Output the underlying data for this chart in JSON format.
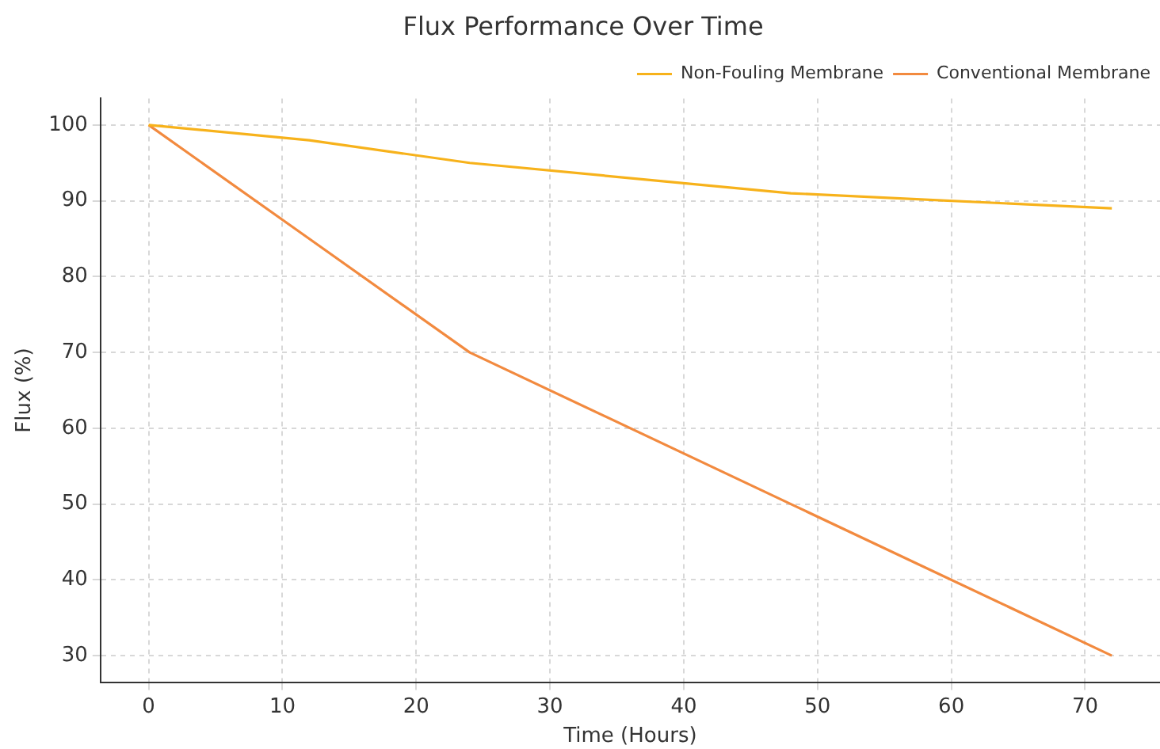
{
  "chart_data": {
    "type": "line",
    "title": "Flux Performance Over Time",
    "xlabel": "Time (Hours)",
    "ylabel": "Flux (%)",
    "x": [
      0,
      12,
      24,
      48,
      72
    ],
    "series": [
      {
        "name": "Non-Fouling Membrane",
        "color": "#f7b21b",
        "values": [
          100,
          98,
          95,
          91,
          89
        ]
      },
      {
        "name": "Conventional Membrane",
        "color": "#f28a3f",
        "values": [
          100,
          85,
          70,
          50,
          30
        ]
      }
    ],
    "xlim": [
      -3.6,
      75.6
    ],
    "xticks": [
      0,
      10,
      20,
      30,
      40,
      50,
      60,
      70
    ],
    "ylim": [
      26.5,
      103.5
    ],
    "yticks": [
      30,
      40,
      50,
      60,
      70,
      80,
      90,
      100
    ],
    "grid": true,
    "legend": "top right",
    "marker": "none",
    "line_style": "solid"
  }
}
